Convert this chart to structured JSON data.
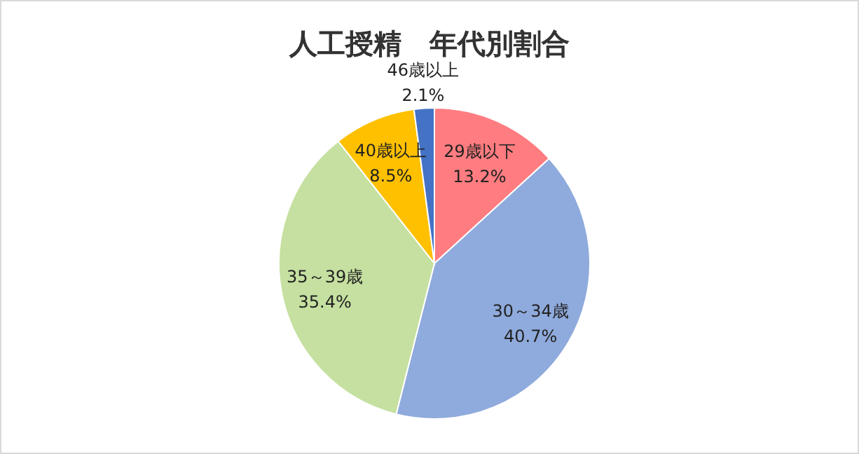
{
  "chart_data": {
    "type": "pie",
    "title": "人工授精　年代別割合",
    "categories": [
      "29歳以下",
      "30～34歳",
      "35～39歳",
      "40歳以上",
      "46歳以上"
    ],
    "values": [
      13.2,
      40.7,
      35.4,
      8.5,
      2.1
    ],
    "colors": [
      "#ff7c80",
      "#8faadc",
      "#c5e0a0",
      "#ffc000",
      "#4472c4"
    ],
    "value_labels": [
      "13.2%",
      "40.7%",
      "35.4%",
      "8.5%",
      "2.1%"
    ],
    "legend": false
  }
}
